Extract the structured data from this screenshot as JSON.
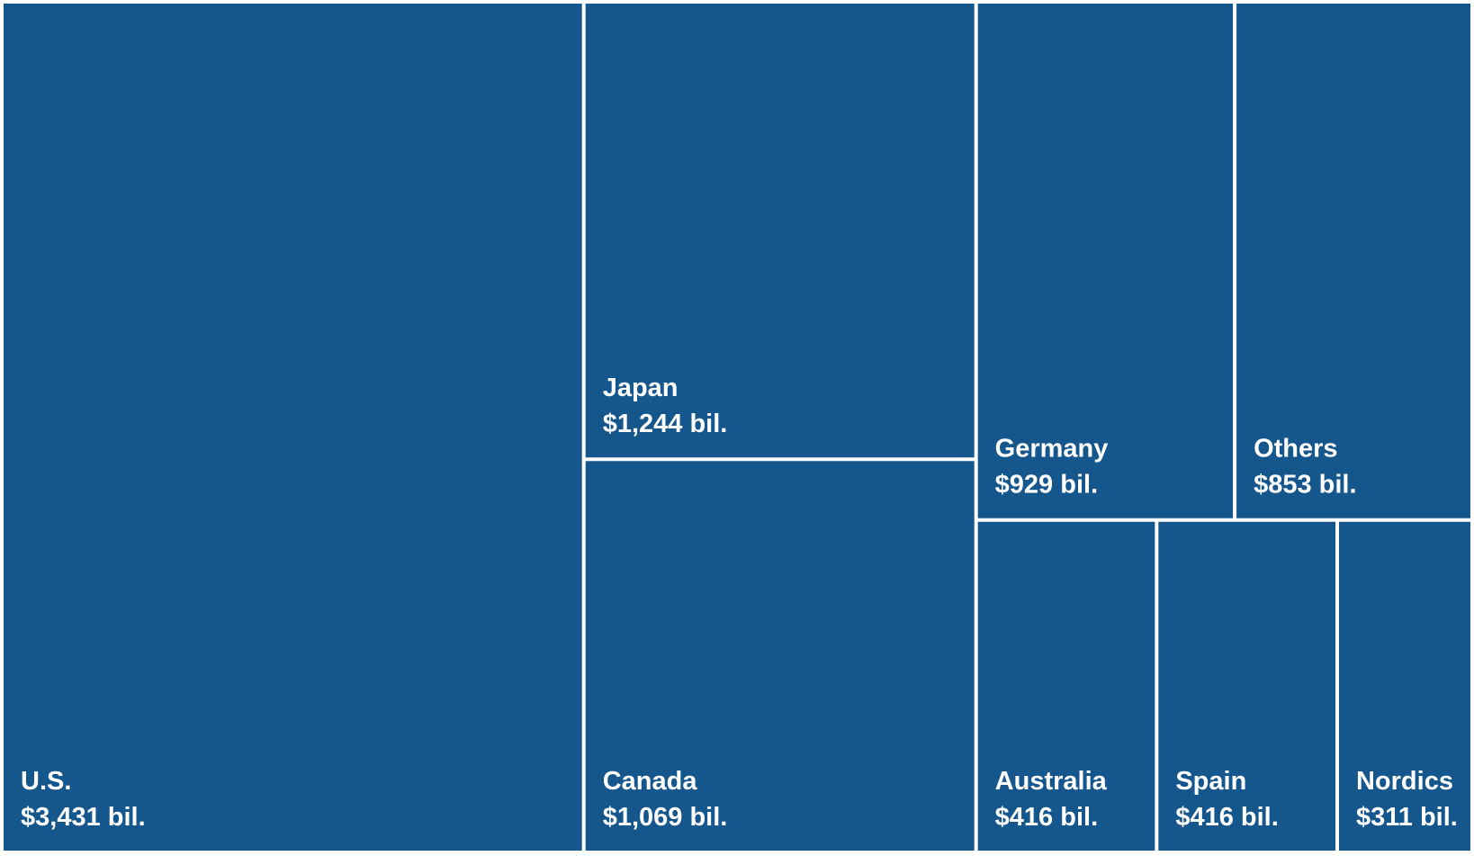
{
  "chart_data": {
    "type": "treemap",
    "categories": [
      "U.S.",
      "Japan",
      "Canada",
      "Germany",
      "Others",
      "Australia",
      "Spain",
      "Nordics"
    ],
    "values": [
      3431,
      1244,
      1069,
      929,
      853,
      416,
      416,
      311
    ],
    "value_labels": [
      "$3,431 bil.",
      "$1,244 bil.",
      "$1,069 bil.",
      "$929 bil.",
      "$853 bil.",
      "$416 bil.",
      "$416 bil.",
      "$311 bil."
    ],
    "color": "#15568c"
  }
}
